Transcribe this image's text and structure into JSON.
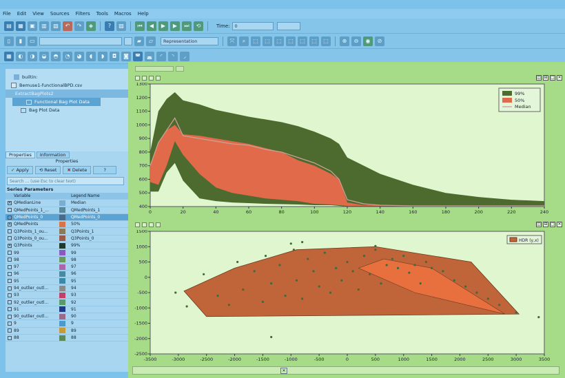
{
  "menu": [
    "File",
    "Edit",
    "View",
    "Sources",
    "Filters",
    "Tools",
    "Macros",
    "Help"
  ],
  "toolbar1": {
    "time_label": "Time:",
    "time_value": "0"
  },
  "toolbar2": {
    "representation_placeholder": "Representation"
  },
  "pipeline": {
    "items": [
      "builtin:",
      "Bemuse1-functionalBPD.csv",
      "ExtractBagPlots2",
      "Functional Bag Plot Data",
      "Bag Plot Data"
    ]
  },
  "panel": {
    "tabs": [
      "Properties",
      "Information"
    ],
    "section": "Properties",
    "buttons": {
      "apply": "Apply",
      "reset": "Reset",
      "delete": "Delete",
      "help": "?"
    },
    "search_placeholder": "Search ... (use Esc to clear text)",
    "series_header": "Series Parameters",
    "columns": [
      "Variable",
      "Legend Name"
    ],
    "rows": [
      {
        "checked": true,
        "var": "QMedianLine",
        "color": "#7aaed0",
        "legend": "Median"
      },
      {
        "checked": false,
        "var": "QMedPoints_1_...",
        "color": "#5a8a9a",
        "legend": "QMedPoints_1"
      },
      {
        "checked": false,
        "var": "QMedPoints_0",
        "color": "#4a6a8a",
        "legend": "QMedPoints_0",
        "selected": true
      },
      {
        "checked": true,
        "var": "QMedPoints",
        "color": "#d8734a",
        "legend": "50%"
      },
      {
        "checked": false,
        "var": "Q3Points_1_ou...",
        "color": "#8a7a5a",
        "legend": "Q3Points_1"
      },
      {
        "checked": false,
        "var": "Q3Points_0_ou...",
        "color": "#9a5a4a",
        "legend": "Q3Points_0"
      },
      {
        "checked": true,
        "var": "Q3Points",
        "color": "#1d3a2a",
        "legend": "99%"
      },
      {
        "checked": false,
        "var": "99",
        "color": "#8a5ac0",
        "legend": "99"
      },
      {
        "checked": false,
        "var": "98",
        "color": "#6a9a5a",
        "legend": "98"
      },
      {
        "checked": false,
        "var": "97",
        "color": "#aa66aa",
        "legend": "97"
      },
      {
        "checked": false,
        "var": "96",
        "color": "#4a8aa0",
        "legend": "96"
      },
      {
        "checked": false,
        "var": "95",
        "color": "#3a8aa8",
        "legend": "95"
      },
      {
        "checked": false,
        "var": "94_outlier_outl...",
        "color": "#8a8a8a",
        "legend": "94"
      },
      {
        "checked": false,
        "var": "93",
        "color": "#c0406a",
        "legend": "93"
      },
      {
        "checked": false,
        "var": "92_outlier_outl...",
        "color": "#5a9a6a",
        "legend": "92"
      },
      {
        "checked": false,
        "var": "91",
        "color": "#203a8a",
        "legend": "91"
      },
      {
        "checked": false,
        "var": "90_outlier_outl...",
        "color": "#9a6a8a",
        "legend": "90"
      },
      {
        "checked": false,
        "var": "9",
        "color": "#4a9acf",
        "legend": "9"
      },
      {
        "checked": false,
        "var": "89",
        "color": "#c79a3a",
        "legend": "89"
      },
      {
        "checked": false,
        "var": "88",
        "color": "#5a8a5a",
        "legend": "88"
      }
    ]
  },
  "colors": {
    "q99": "#4d6b2e",
    "q50": "#e06a4a",
    "median": "#c9a196",
    "hdr": "#c0643a",
    "hdr_inner": "#e8703f",
    "plot_bg": "#dff6cf"
  },
  "chart_data": [
    {
      "type": "area",
      "x": [
        0,
        5,
        10,
        15,
        20,
        30,
        40,
        50,
        60,
        70,
        80,
        90,
        100,
        110,
        115,
        120,
        130,
        140,
        160,
        180,
        200,
        220,
        240
      ],
      "series": [
        {
          "name": "99%",
          "upper": [
            800,
            1100,
            1190,
            1240,
            1180,
            1150,
            1110,
            1085,
            1060,
            1040,
            1020,
            990,
            950,
            900,
            860,
            760,
            700,
            640,
            560,
            500,
            470,
            450,
            440
          ],
          "lower": [
            510,
            510,
            650,
            720,
            590,
            460,
            440,
            430,
            425,
            420,
            418,
            415,
            410,
            410,
            405,
            400,
            400,
            400,
            400,
            400,
            400,
            400,
            400
          ]
        },
        {
          "name": "50%",
          "upper": [
            700,
            870,
            960,
            1000,
            930,
            920,
            900,
            880,
            860,
            830,
            800,
            740,
            700,
            640,
            600,
            430,
            410,
            410,
            405,
            405,
            405,
            405,
            405
          ],
          "lower": [
            580,
            560,
            700,
            880,
            780,
            640,
            540,
            500,
            480,
            460,
            450,
            440,
            420,
            415,
            410,
            405,
            405,
            405,
            405,
            405,
            405,
            405,
            405
          ]
        },
        {
          "name": "Median",
          "values": [
            700,
            870,
            960,
            1050,
            920,
            900,
            880,
            860,
            850,
            820,
            800,
            760,
            720,
            660,
            600,
            450,
            420,
            410,
            405,
            405,
            405,
            405,
            405
          ]
        }
      ],
      "xticks": [
        0,
        20,
        40,
        60,
        80,
        100,
        120,
        140,
        160,
        180,
        200,
        220,
        240
      ],
      "yticks": [
        400,
        500,
        600,
        700,
        800,
        900,
        1000,
        1100,
        1200,
        1300
      ],
      "xlim": [
        0,
        240
      ],
      "ylim": [
        400,
        1300
      ],
      "legend": "top-right"
    },
    {
      "type": "scatter",
      "hdr_outer": [
        [
          -2900,
          -450
        ],
        [
          -2500,
          -1280
        ],
        [
          1100,
          -1230
        ],
        [
          3050,
          -1200
        ],
        [
          2200,
          500
        ],
        [
          500,
          1000
        ],
        [
          -900,
          900
        ],
        [
          -2000,
          300
        ]
      ],
      "hdr_inner": [
        [
          200,
          300
        ],
        [
          650,
          600
        ],
        [
          1500,
          300
        ],
        [
          2800,
          -1200
        ],
        [
          1200,
          -500
        ]
      ],
      "points": [
        [
          -3050,
          -500
        ],
        [
          -2850,
          -950
        ],
        [
          -2550,
          100
        ],
        [
          -2300,
          -600
        ],
        [
          -2100,
          -900
        ],
        [
          -1950,
          500
        ],
        [
          -1850,
          -400
        ],
        [
          -1650,
          200
        ],
        [
          -1500,
          -800
        ],
        [
          -1450,
          700
        ],
        [
          -1350,
          -200
        ],
        [
          -1200,
          400
        ],
        [
          -1100,
          -600
        ],
        [
          -1000,
          1100
        ],
        [
          -950,
          900
        ],
        [
          -900,
          -100
        ],
        [
          -800,
          -700
        ],
        [
          -700,
          600
        ],
        [
          -600,
          200
        ],
        [
          -500,
          -300
        ],
        [
          -400,
          800
        ],
        [
          -300,
          -500
        ],
        [
          -200,
          300
        ],
        [
          -100,
          -100
        ],
        [
          0,
          500
        ],
        [
          100,
          200
        ],
        [
          200,
          -400
        ],
        [
          300,
          700
        ],
        [
          400,
          100
        ],
        [
          500,
          900
        ],
        [
          600,
          -200
        ],
        [
          700,
          400
        ],
        [
          800,
          600
        ],
        [
          900,
          300
        ],
        [
          1000,
          700
        ],
        [
          1100,
          150
        ],
        [
          1200,
          400
        ],
        [
          1300,
          -200
        ],
        [
          1400,
          500
        ],
        [
          1500,
          300
        ],
        [
          1700,
          200
        ],
        [
          1900,
          -100
        ],
        [
          2100,
          -300
        ],
        [
          2300,
          -500
        ],
        [
          2500,
          -700
        ],
        [
          2700,
          -900
        ],
        [
          3000,
          -1150
        ],
        [
          3400,
          -1300
        ],
        [
          -1350,
          -1950
        ],
        [
          -800,
          1150
        ],
        [
          500,
          1020
        ]
      ],
      "xticks": [
        -3500,
        -3000,
        -2500,
        -2000,
        -1500,
        -1000,
        -500,
        0,
        500,
        1000,
        1500,
        2000,
        2500,
        3000,
        3500
      ],
      "yticks": [
        -2500,
        -2000,
        -1500,
        -1000,
        -500,
        0,
        500,
        1000,
        1500
      ],
      "xlim": [
        -3500,
        3500
      ],
      "ylim": [
        -2500,
        1500
      ],
      "series": [
        {
          "name": "HDR (y,x)"
        }
      ],
      "legend": "top-right"
    }
  ]
}
